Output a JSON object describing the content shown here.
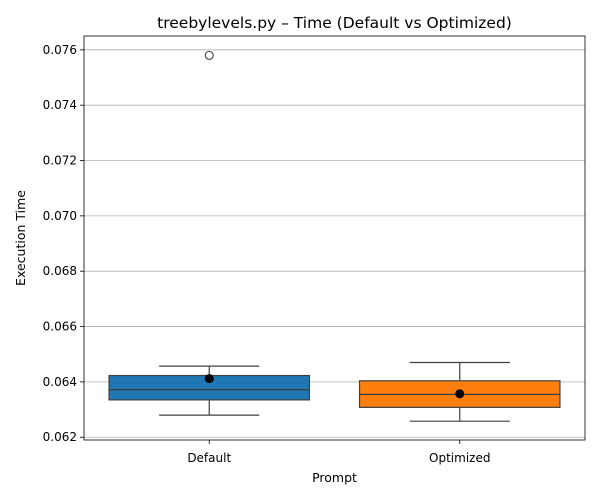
{
  "chart_data": {
    "type": "box",
    "title": "treebylevels.py – Time (Default vs Optimized)",
    "xlabel": "Prompt",
    "ylabel": "Execution Time",
    "ylim": [
      0.0619,
      0.0765
    ],
    "yticks": [
      "0.062",
      "0.064",
      "0.066",
      "0.068",
      "0.070",
      "0.072",
      "0.074",
      "0.076"
    ],
    "grid": "horizontal",
    "categories": [
      "Default",
      "Optimized"
    ],
    "boxes": [
      {
        "name": "Default",
        "color": "#1f77b4",
        "whisker_low": 0.0628,
        "q1": 0.06335,
        "median": 0.06372,
        "q3": 0.06423,
        "whisker_high": 0.06457,
        "mean": 0.06412,
        "outliers": [
          0.0758
        ]
      },
      {
        "name": "Optimized",
        "color": "#ff7f0e",
        "whisker_low": 0.06258,
        "q1": 0.06308,
        "median": 0.06355,
        "q3": 0.06404,
        "whisker_high": 0.0647,
        "mean": 0.06357,
        "outliers": []
      }
    ]
  }
}
